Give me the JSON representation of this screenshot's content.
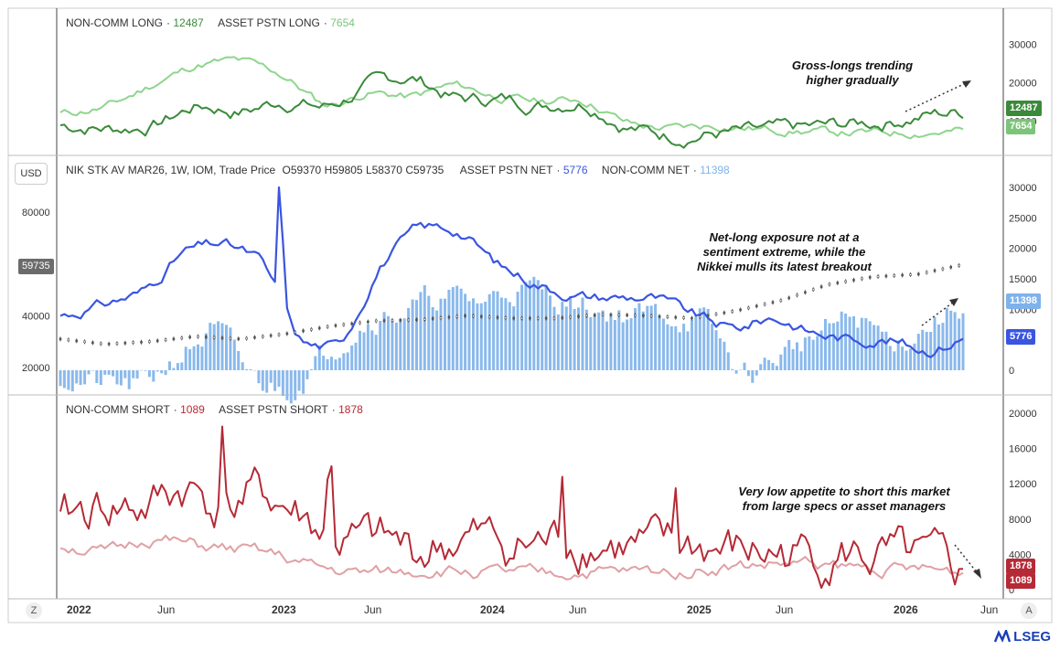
{
  "colors": {
    "noncomm_long": "#3b8a3a",
    "asset_long": "#8fd58d",
    "net_asset": "#3a55e0",
    "net_noncomm": "#7fb2ea",
    "noncomm_short": "#b52a35",
    "asset_short": "#e0a0a4",
    "price": "#555555"
  },
  "panel_top": {
    "legend": [
      {
        "label": "NON-COMM LONG",
        "value": "12487",
        "color": "#3b8a3a"
      },
      {
        "label": "ASSET PSTN LONG",
        "value": "7654",
        "color": "#7cc47a"
      }
    ],
    "badges": [
      {
        "text": "12487",
        "color": "#3b8a3a"
      },
      {
        "text": "7654",
        "color": "#7cc47a"
      }
    ],
    "ticks": [
      "30000",
      "20000",
      "10000"
    ],
    "annotation": "Gross-longs trending higher gradually"
  },
  "panel_mid": {
    "currency": "USD",
    "legend": {
      "title": "NIK STK AV MAR26, 1W, IOM, Trade Price",
      "ohlc": "O59370  H59805  L58370  C59735",
      "asset": "ASSET PSTN NET",
      "asset_value": "5776",
      "noncomm": "NON-COMM NET",
      "noncomm_value": "11398"
    },
    "left_ticks": [
      "80000",
      "60000",
      "40000",
      "20000"
    ],
    "price_badge": "59735",
    "right_ticks": [
      "30000",
      "25000",
      "20000",
      "15000",
      "10000",
      "5000",
      "0"
    ],
    "badges": [
      {
        "text": "11398",
        "color": "#7fb2ea"
      },
      {
        "text": "5776",
        "color": "#3a55e0"
      }
    ],
    "annotation": "Net-long exposure not at a sentiment extreme, while the Nikkei mulls its latest breakout"
  },
  "panel_bot": {
    "legend": [
      {
        "label": "NON-COMM SHORT",
        "value": "1089",
        "color": "#b52a35"
      },
      {
        "label": "ASSET PSTN SHORT",
        "value": "1878",
        "color": "#b52a35"
      }
    ],
    "ticks": [
      "20000",
      "16000",
      "12000",
      "8000",
      "4000",
      "0"
    ],
    "badges": [
      {
        "text": "1878",
        "color": "#b52a35"
      },
      {
        "text": "1089",
        "color": "#b52a35"
      }
    ],
    "annotation": "Very low appetite to short this market from large specs or asset managers"
  },
  "x_axis": {
    "labels": [
      "2022",
      "Jun",
      "2023",
      "Jun",
      "2024",
      "Jun",
      "2025",
      "Jun",
      "2026",
      "Jun"
    ],
    "bold": [
      "2022",
      "2023",
      "2024",
      "2025",
      "2026"
    ]
  },
  "corner_left": "Z",
  "corner_right": "A",
  "brand": "LSEG",
  "chart_data": [
    {
      "type": "line",
      "title": "",
      "series": [
        {
          "name": "NON-COMM LONG",
          "last": 12487
        },
        {
          "name": "ASSET PSTN LONG",
          "last": 7654
        }
      ],
      "x": [
        "2022",
        "2026-06"
      ],
      "ylim": [
        0,
        35000
      ]
    },
    {
      "type": "bar",
      "title": "NIK STK AV MAR26, 1W, IOM, Trade Price",
      "ohlc": {
        "open": 59370,
        "high": 59805,
        "low": 58370,
        "close": 59735
      },
      "series": [
        {
          "name": "ASSET PSTN NET",
          "type": "line",
          "last": 5776
        },
        {
          "name": "NON-COMM NET",
          "type": "bar",
          "last": 11398
        }
      ],
      "price_range": [
        20000,
        80000
      ],
      "ylim_right": [
        -3000,
        32000
      ]
    },
    {
      "type": "line",
      "title": "",
      "series": [
        {
          "name": "NON-COMM SHORT",
          "last": 1089
        },
        {
          "name": "ASSET PSTN SHORT",
          "last": 1878
        }
      ],
      "ylim": [
        0,
        21000
      ]
    }
  ]
}
